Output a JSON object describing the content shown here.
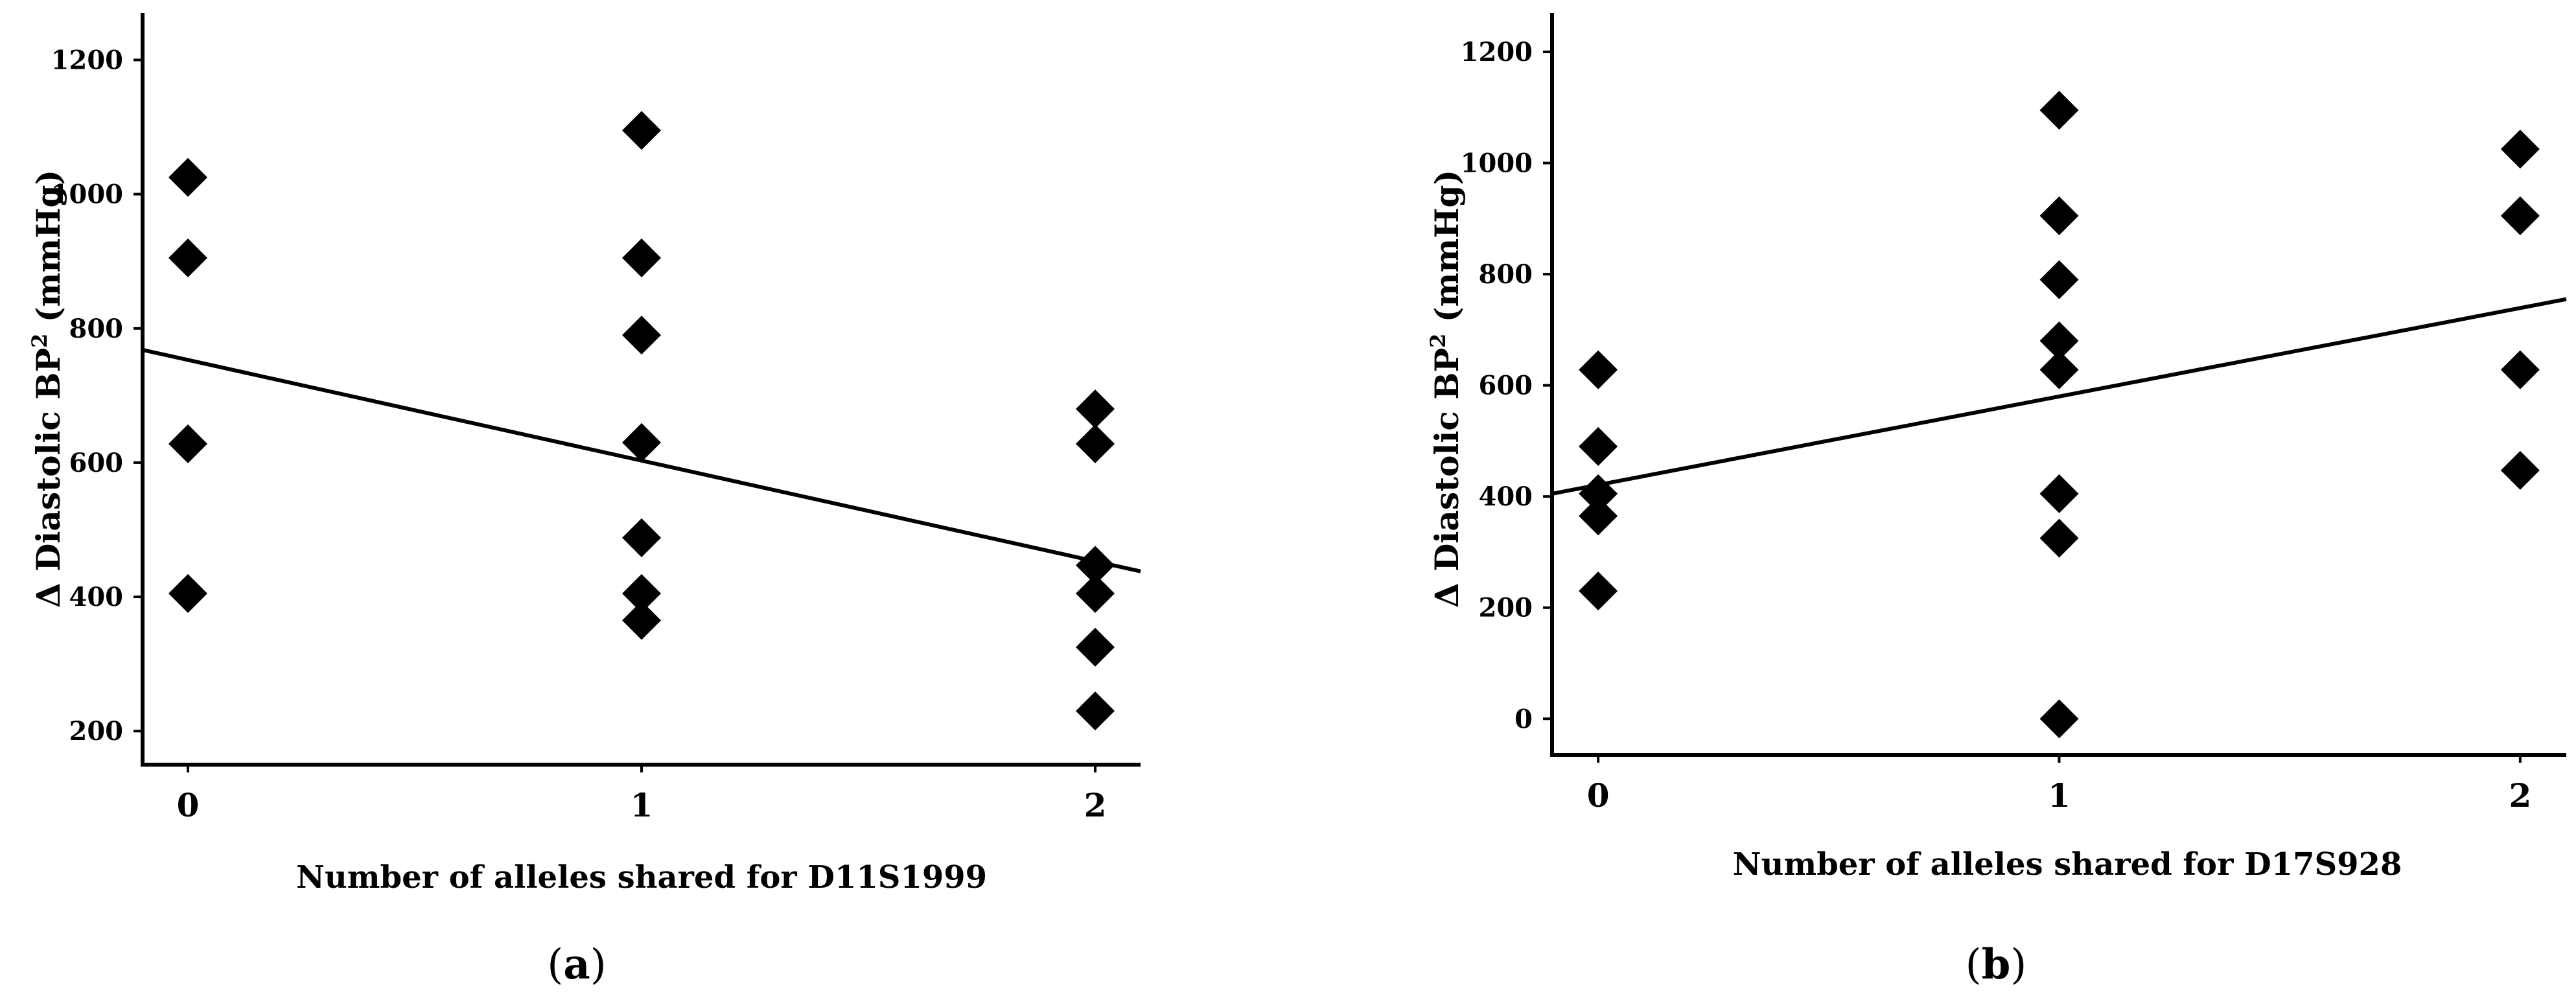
{
  "chart_data": [
    {
      "type": "scatter",
      "panel_label": "a",
      "title": "",
      "xlabel": "Number of alleles shared for D11S1999",
      "ylabel_prefix": "Δ Diastolic BP",
      "ylabel_sup": "2",
      "ylabel_suffix": " (mmHg)",
      "xlim": [
        -0.1,
        2.1
      ],
      "ylim": [
        150,
        1270
      ],
      "x_ticks": [
        0,
        1,
        2
      ],
      "x_tick_labels": [
        "0",
        "1",
        "2"
      ],
      "y_ticks": [
        200,
        400,
        600,
        800,
        1000,
        1200
      ],
      "y_tick_labels": [
        "200",
        "400",
        "600",
        "800",
        "1000",
        "1200"
      ],
      "points": [
        {
          "x": 0,
          "y": 1025
        },
        {
          "x": 0,
          "y": 905
        },
        {
          "x": 0,
          "y": 628
        },
        {
          "x": 0,
          "y": 405
        },
        {
          "x": 1,
          "y": 1095
        },
        {
          "x": 1,
          "y": 905
        },
        {
          "x": 1,
          "y": 790
        },
        {
          "x": 1,
          "y": 630
        },
        {
          "x": 1,
          "y": 488
        },
        {
          "x": 1,
          "y": 405
        },
        {
          "x": 1,
          "y": 365
        },
        {
          "x": 2,
          "y": 680
        },
        {
          "x": 2,
          "y": 628
        },
        {
          "x": 2,
          "y": 447
        },
        {
          "x": 2,
          "y": 405
        },
        {
          "x": 2,
          "y": 325
        },
        {
          "x": 2,
          "y": 230
        }
      ],
      "trendline": {
        "x": [
          -0.1,
          2.1
        ],
        "y": [
          768,
          438
        ]
      },
      "grid": false,
      "legend": false
    },
    {
      "type": "scatter",
      "panel_label": "b",
      "title": "",
      "xlabel": "Number of alleles shared for D17S928",
      "ylabel_prefix": "Δ Diastolic BP",
      "ylabel_sup": "2",
      "ylabel_suffix": " (mmHg)",
      "xlim": [
        -0.1,
        2.1
      ],
      "ylim": [
        -65,
        1270
      ],
      "x_ticks": [
        0,
        1,
        2
      ],
      "x_tick_labels": [
        "0",
        "1",
        "2"
      ],
      "y_ticks": [
        0,
        200,
        400,
        600,
        800,
        1000,
        1200
      ],
      "y_tick_labels": [
        "0",
        "200",
        "400",
        "600",
        "800",
        "1000",
        "1200"
      ],
      "points": [
        {
          "x": 0,
          "y": 628
        },
        {
          "x": 0,
          "y": 490
        },
        {
          "x": 0,
          "y": 405
        },
        {
          "x": 0,
          "y": 365
        },
        {
          "x": 0,
          "y": 230
        },
        {
          "x": 1,
          "y": 1095
        },
        {
          "x": 1,
          "y": 905
        },
        {
          "x": 1,
          "y": 790
        },
        {
          "x": 1,
          "y": 680
        },
        {
          "x": 1,
          "y": 628
        },
        {
          "x": 1,
          "y": 405
        },
        {
          "x": 1,
          "y": 325
        },
        {
          "x": 1,
          "y": 0
        },
        {
          "x": 2,
          "y": 1025
        },
        {
          "x": 2,
          "y": 905
        },
        {
          "x": 2,
          "y": 628
        },
        {
          "x": 2,
          "y": 447
        }
      ],
      "trendline": {
        "x": [
          -0.1,
          2.1
        ],
        "y": [
          405,
          755
        ]
      },
      "grid": false,
      "legend": false
    }
  ]
}
